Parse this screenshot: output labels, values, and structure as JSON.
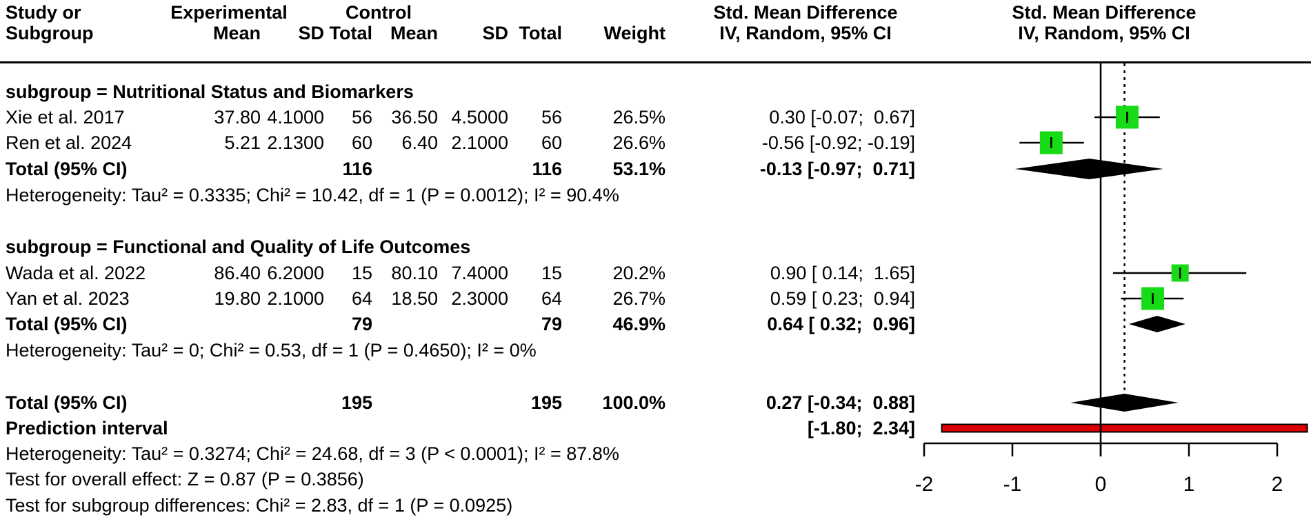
{
  "header": {
    "col1_line1": "Study or",
    "col1_line2": "Subgroup",
    "experimental": "Experimental",
    "control": "Control",
    "mean": "Mean",
    "sd": "SD",
    "total": "Total",
    "weight": "Weight",
    "smd_line1": "Std. Mean Difference",
    "smd_line2": "IV, Random, 95% CI",
    "plot_line1": "Std. Mean Difference",
    "plot_line2": "IV, Random, 95% CI"
  },
  "chart_data": {
    "type": "forest",
    "effect_measure": "Std. Mean Difference",
    "model": "IV, Random, 95% CI",
    "x_axis": {
      "min": -2,
      "max": 2,
      "ticks": [
        "-2",
        "-1",
        "0",
        "1",
        "2"
      ],
      "tick_values": [
        -2,
        -1,
        0,
        1,
        2
      ]
    },
    "zero_line": 0,
    "overall_effect_line": 0.27,
    "groups": [
      {
        "heading": "subgroup = Nutritional Status and Biomarkers",
        "studies": [
          {
            "label": "Xie et al. 2017",
            "mean_e": "37.80",
            "sd_e": "4.1000",
            "total_e": "56",
            "mean_c": "36.50",
            "sd_c": "4.5000",
            "total_c": "56",
            "weight": "26.5%",
            "weight_pct": 26.5,
            "ci_text": "0.30 [-0.07;  0.67]",
            "est": 0.3,
            "lo": -0.07,
            "hi": 0.67
          },
          {
            "label": "Ren et al. 2024",
            "mean_e": "5.21",
            "sd_e": "2.1300",
            "total_e": "60",
            "mean_c": "6.40",
            "sd_c": "2.1000",
            "total_c": "60",
            "weight": "26.6%",
            "weight_pct": 26.6,
            "ci_text": "-0.56 [-0.92; -0.19]",
            "est": -0.56,
            "lo": -0.92,
            "hi": -0.19
          }
        ],
        "total": {
          "label": "Total (95% CI)",
          "total_e": "116",
          "total_c": "116",
          "weight": "53.1%",
          "ci_text": "-0.13 [-0.97;  0.71]",
          "est": -0.13,
          "lo": -0.97,
          "hi": 0.71
        },
        "heterogeneity": "Heterogeneity: Tau² = 0.3335; Chi² = 10.42, df = 1 (P = 0.0012); I² = 90.4%"
      },
      {
        "heading": "subgroup = Functional and Quality of Life Outcomes",
        "studies": [
          {
            "label": "Wada et al. 2022",
            "mean_e": "86.40",
            "sd_e": "6.2000",
            "total_e": "15",
            "mean_c": "80.10",
            "sd_c": "7.4000",
            "total_c": "15",
            "weight": "20.2%",
            "weight_pct": 20.2,
            "ci_text": "0.90 [ 0.14;  1.65]",
            "est": 0.9,
            "lo": 0.14,
            "hi": 1.65
          },
          {
            "label": "Yan et al. 2023",
            "mean_e": "19.80",
            "sd_e": "2.1000",
            "total_e": "64",
            "mean_c": "18.50",
            "sd_c": "2.3000",
            "total_c": "64",
            "weight": "26.7%",
            "weight_pct": 26.7,
            "ci_text": "0.59 [ 0.23;  0.94]",
            "est": 0.59,
            "lo": 0.23,
            "hi": 0.94
          }
        ],
        "total": {
          "label": "Total (95% CI)",
          "total_e": "79",
          "total_c": "79",
          "weight": "46.9%",
          "ci_text": "0.64 [ 0.32;  0.96]",
          "est": 0.64,
          "lo": 0.32,
          "hi": 0.96
        },
        "heterogeneity": "Heterogeneity: Tau² = 0; Chi² = 0.53, df = 1 (P = 0.4650); I² = 0%"
      }
    ],
    "overall": {
      "label": "Total (95% CI)",
      "total_e": "195",
      "total_c": "195",
      "weight": "100.0%",
      "ci_text": "0.27 [-0.34;  0.88]",
      "est": 0.27,
      "lo": -0.34,
      "hi": 0.88
    },
    "prediction_interval": {
      "label": "Prediction interval",
      "ci_text": "[-1.80;  2.34]",
      "lo": -1.8,
      "hi": 2.34
    },
    "footnotes": [
      "Heterogeneity: Tau² = 0.3274; Chi² = 24.68, df = 3 (P < 0.0001); I² = 87.8%",
      "Test for overall effect: Z = 0.87 (P = 0.3856)",
      "Test for subgroup differences: Chi² = 2.83, df = 1 (P = 0.0925)"
    ],
    "colors": {
      "square": "#16DB16",
      "diamond": "#000000",
      "prediction_fill": "#DD0000",
      "line": "#000000"
    }
  }
}
